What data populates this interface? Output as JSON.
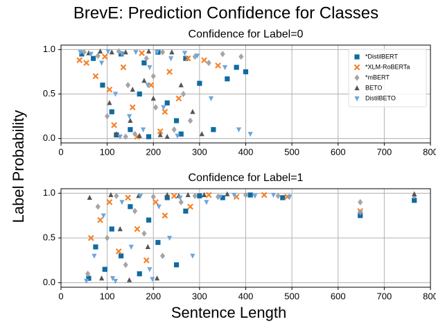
{
  "title": "BrevE: Prediction Confidence for Classes",
  "xlabel": "Sentence Length",
  "ylabel": "Label Probability",
  "chart_data": [
    {
      "type": "scatter",
      "title": "Confidence for Label=0",
      "legend": "upper right",
      "grid": true,
      "xlim": [
        0,
        800
      ],
      "ylim": [
        -0.05,
        1.05
      ],
      "xticks": [
        0,
        100,
        200,
        300,
        400,
        500,
        600,
        700,
        800
      ],
      "yticks": [
        {
          "value": 0,
          "label": "0.0"
        },
        {
          "value": 0.5,
          "label": "0.5"
        },
        {
          "value": 1,
          "label": "1.0"
        }
      ],
      "series": [
        {
          "name": "*DistilBERT",
          "color": "#0f6ba3",
          "marker": "square",
          "x": [
            45,
            70,
            90,
            110,
            130,
            150,
            170,
            190,
            210,
            230,
            250,
            270,
            300,
            330,
            360,
            380,
            400,
            120,
            180,
            260
          ],
          "values": [
            0.95,
            0.9,
            0.6,
            0.3,
            0.95,
            0.1,
            0.5,
            0.02,
            0.97,
            0.4,
            0.2,
            0.9,
            0.62,
            0.1,
            0.67,
            0.8,
            0.75,
            0.04,
            0.85,
            0.05
          ]
        },
        {
          "name": "*XLM-RoBERTa",
          "color": "#f5822a",
          "marker": "x",
          "x": [
            40,
            55,
            75,
            95,
            115,
            135,
            155,
            175,
            195,
            215,
            235,
            255,
            275,
            310,
            340,
            105,
            165,
            225
          ],
          "values": [
            0.88,
            0.85,
            0.7,
            0.92,
            0.15,
            0.8,
            0.35,
            0.96,
            0.6,
            0.08,
            0.75,
            0.45,
            0.9,
            0.88,
            0.82,
            0.55,
            0.02,
            0.3
          ]
        },
        {
          "name": "*mBERT",
          "color": "#a5a5a5",
          "marker": "diamond",
          "x": [
            50,
            80,
            100,
            125,
            145,
            160,
            185,
            205,
            220,
            245,
            265,
            290,
            320,
            350,
            390,
            140,
            200,
            280
          ],
          "values": [
            0.97,
            0.93,
            0.25,
            0.98,
            0.6,
            0.05,
            0.9,
            0.35,
            0.97,
            0.1,
            0.5,
            0.92,
            0.85,
            0.95,
            0.92,
            0.02,
            0.7,
            0.2
          ]
        },
        {
          "name": "BETO",
          "color": "#555555",
          "marker": "tri-up",
          "x": [
            60,
            85,
            105,
            120,
            140,
            155,
            170,
            190,
            200,
            215,
            240,
            260,
            285,
            305,
            110,
            150,
            180,
            230
          ],
          "values": [
            0.96,
            0.98,
            0.4,
            0.05,
            0.97,
            0.55,
            0.03,
            0.98,
            0.45,
            0.04,
            0.97,
            0.6,
            0.3,
            0.05,
            0.97,
            0.2,
            0.65,
            0.02
          ]
        },
        {
          "name": "DistilBETO",
          "color": "#6fa6da",
          "marker": "tri-down",
          "x": [
            42,
            65,
            88,
            102,
            118,
            132,
            148,
            162,
            178,
            192,
            208,
            222,
            238,
            252,
            268,
            295,
            325,
            355,
            385,
            410,
            128,
            188
          ],
          "values": [
            0.97,
            0.95,
            0.85,
            0.98,
            0.5,
            0.95,
            0.25,
            0.97,
            0.1,
            0.8,
            0.97,
            0.35,
            0.9,
            0.03,
            0.96,
            0.93,
            0.45,
            0.8,
            0.1,
            0.05,
            0.02,
            0.6
          ]
        }
      ]
    },
    {
      "type": "scatter",
      "title": "Confidence for Label=1",
      "grid": true,
      "xlim": [
        0,
        800
      ],
      "ylim": [
        -0.05,
        1.05
      ],
      "xticks": [
        0,
        100,
        200,
        300,
        400,
        500,
        600,
        700,
        800
      ],
      "yticks": [
        {
          "value": 0,
          "label": "0.0"
        },
        {
          "value": 0.5,
          "label": "0.5"
        },
        {
          "value": 1,
          "label": "1.0"
        }
      ],
      "series": [
        {
          "color": "#0f6ba3",
          "marker": "square",
          "x": [
            60,
            75,
            95,
            110,
            130,
            150,
            170,
            190,
            210,
            230,
            250,
            270,
            300,
            350,
            410,
            480,
            648,
            765
          ],
          "values": [
            0.05,
            0.4,
            0.15,
            0.6,
            0.3,
            0.85,
            0.1,
            0.7,
            0.45,
            0.95,
            0.2,
            0.8,
            0.97,
            0.95,
            0.98,
            0.95,
            0.75,
            0.92
          ]
        },
        {
          "color": "#f5822a",
          "marker": "x",
          "x": [
            65,
            85,
            105,
            125,
            145,
            165,
            185,
            205,
            225,
            245,
            280,
            320,
            380,
            440,
            490,
            648
          ],
          "values": [
            0.5,
            0.7,
            0.9,
            0.35,
            0.95,
            0.6,
            0.25,
            0.9,
            0.75,
            0.97,
            0.85,
            0.98,
            0.96,
            0.98,
            0.96,
            0.8
          ]
        },
        {
          "color": "#a5a5a5",
          "marker": "diamond",
          "x": [
            58,
            80,
            100,
            120,
            140,
            160,
            180,
            200,
            220,
            260,
            290,
            340,
            400,
            470,
            648,
            765
          ],
          "values": [
            0.1,
            0.85,
            0.5,
            0.97,
            0.2,
            0.8,
            0.55,
            0.96,
            0.3,
            0.9,
            0.97,
            0.96,
            0.98,
            0.97,
            0.9,
            0.97
          ]
        },
        {
          "color": "#555555",
          "marker": "tri-up",
          "x": [
            62,
            88,
            108,
            128,
            148,
            168,
            188,
            208,
            230,
            255,
            275,
            310,
            360,
            765
          ],
          "values": [
            0.95,
            0.05,
            0.98,
            0.6,
            0.03,
            0.97,
            0.4,
            0.05,
            0.98,
            0.97,
            0.98,
            0.98,
            0.99,
            0.99
          ]
        },
        {
          "color": "#6fa6da",
          "marker": "tri-down",
          "x": [
            55,
            72,
            92,
            112,
            132,
            152,
            172,
            192,
            212,
            235,
            258,
            285,
            315,
            345,
            375,
            420,
            460,
            495,
            648,
            118,
            198
          ],
          "values": [
            0.02,
            0.3,
            0.75,
            0.05,
            0.9,
            0.4,
            0.97,
            0.15,
            0.85,
            0.5,
            0.95,
            0.3,
            0.9,
            0.96,
            0.98,
            0.97,
            0.98,
            0.96,
            0.78,
            0.02,
            0.04
          ]
        }
      ]
    }
  ]
}
